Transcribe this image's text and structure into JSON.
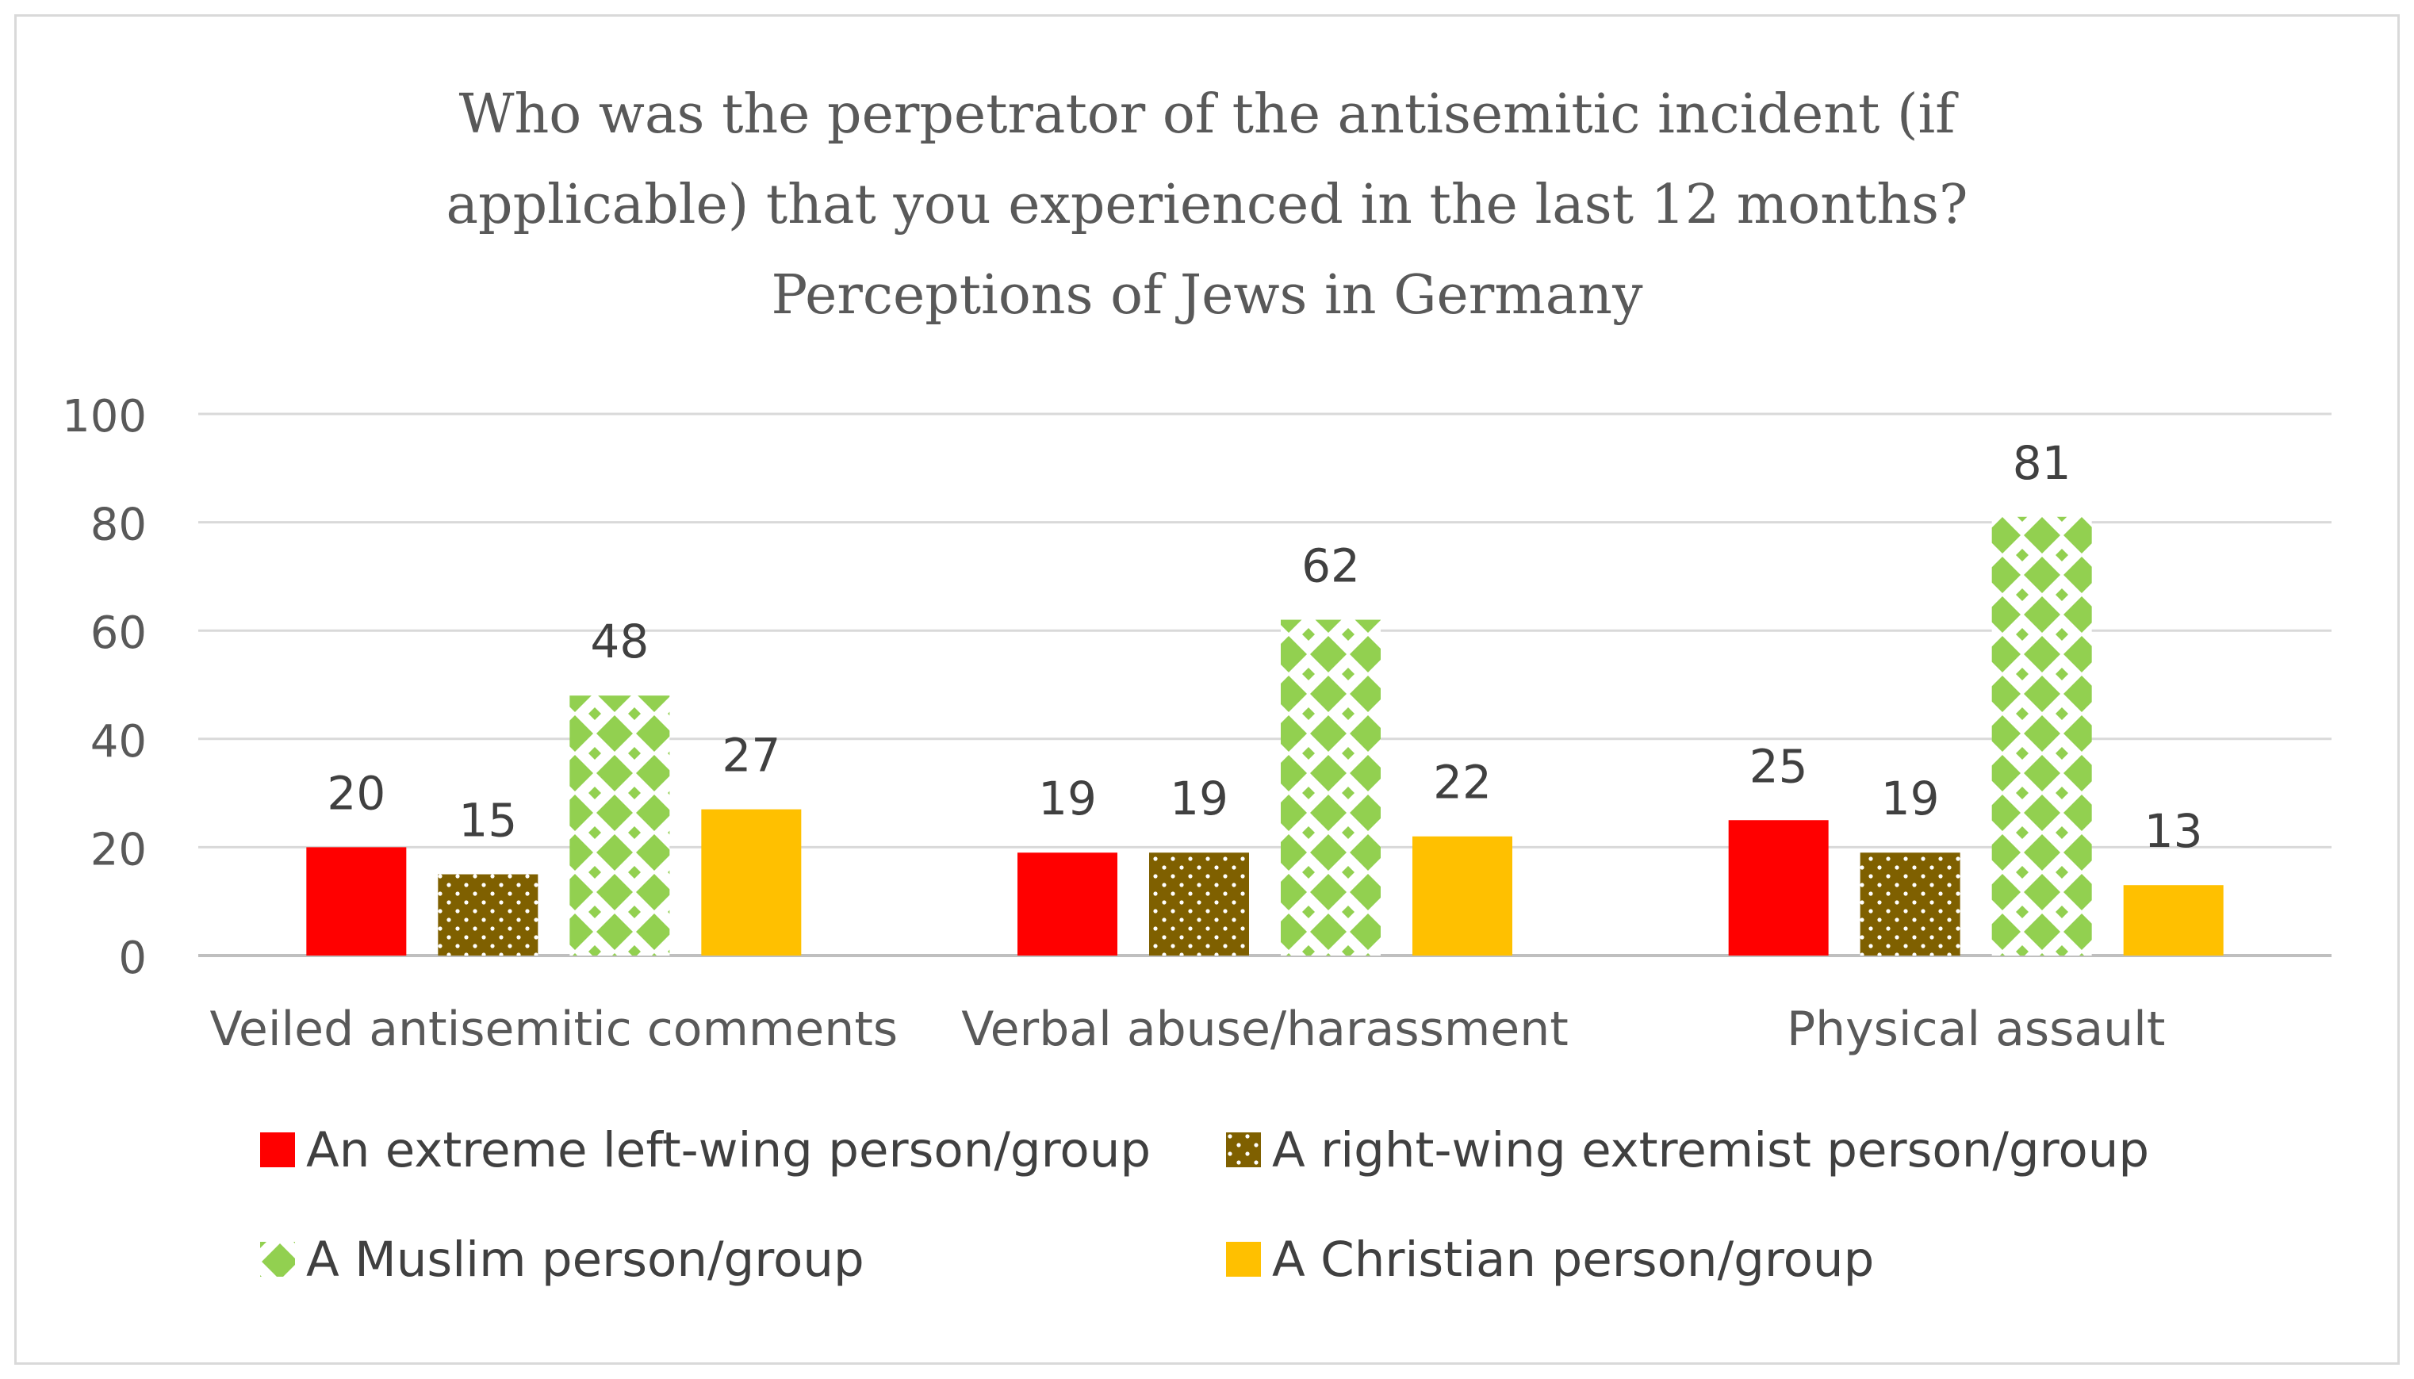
{
  "chart_data": {
    "type": "bar",
    "title_lines": [
      "Who was the perpetrator of the antisemitic incident (if",
      "applicable) that you experienced in the last 12 months?",
      "Perceptions of Jews in Germany"
    ],
    "categories": [
      "Veiled antisemitic comments",
      "Verbal abuse/harassment",
      "Physical assault"
    ],
    "series": [
      {
        "name": "An extreme left-wing person/group",
        "values": [
          20,
          19,
          25
        ],
        "color": "#ff0000",
        "pattern": "solid"
      },
      {
        "name": "A right-wing extremist person/group",
        "values": [
          15,
          19,
          19
        ],
        "color": "#7f6000",
        "pattern": "dots"
      },
      {
        "name": "A Muslim person/group",
        "values": [
          48,
          62,
          81
        ],
        "color": "#92d050",
        "pattern": "diamonds"
      },
      {
        "name": "A Christian person/group",
        "values": [
          27,
          22,
          13
        ],
        "color": "#ffc000",
        "pattern": "solid"
      }
    ],
    "ylim": [
      0,
      100
    ],
    "yticks": [
      0,
      20,
      40,
      60,
      80,
      100
    ],
    "xlabel": "",
    "ylabel": "",
    "grid": true,
    "legend_position": "bottom",
    "data_labels": true
  }
}
